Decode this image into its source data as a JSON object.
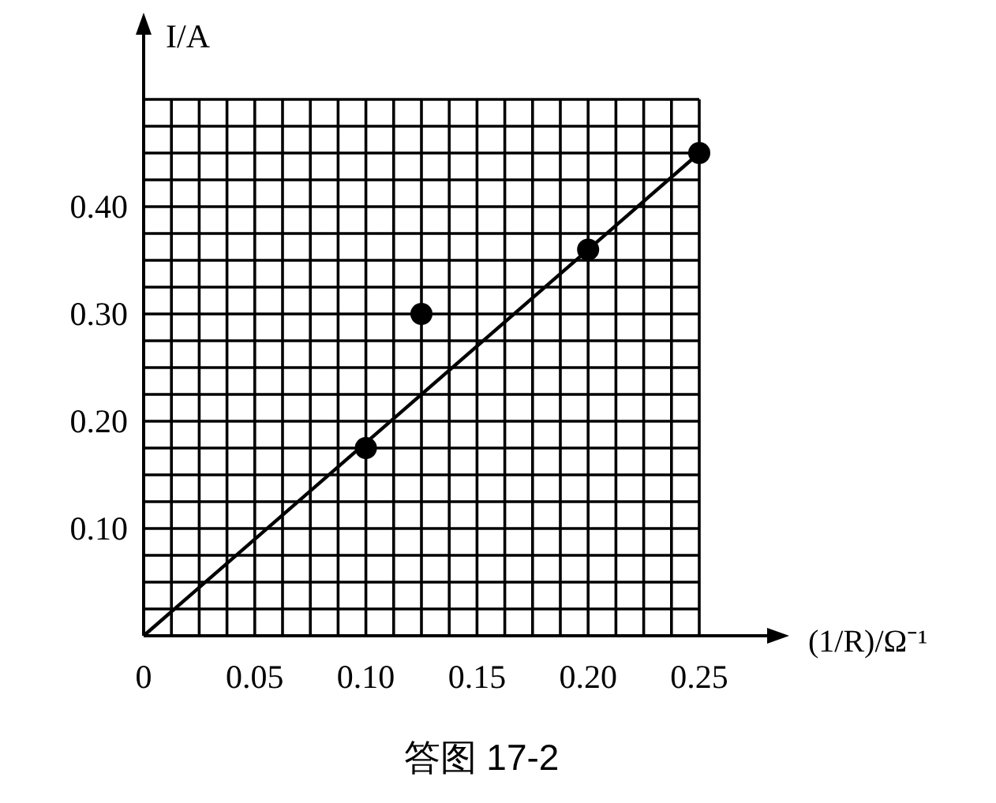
{
  "chart_data": {
    "type": "scatter",
    "xlabel": "(1/R)/Ω⁻¹",
    "ylabel": "I/A",
    "annotations": [
      "答图 17-2"
    ],
    "xlim": [
      0,
      0.25
    ],
    "ylim": [
      0,
      0.5
    ],
    "xticks": [
      {
        "value": 0,
        "label": "0"
      },
      {
        "value": 0.0125,
        "label": null
      },
      {
        "value": 0.025,
        "label": null
      },
      {
        "value": 0.0375,
        "label": null
      },
      0.05,
      {
        "value": 0.0625,
        "label": null
      },
      {
        "value": 0.075,
        "label": null
      },
      {
        "value": 0.0875,
        "label": null
      },
      {
        "value": 0.1,
        "label": "0.10"
      },
      {
        "value": 0.1125,
        "label": null
      },
      {
        "value": 0.125,
        "label": null
      },
      {
        "value": 0.1375,
        "label": null
      },
      0.15,
      {
        "value": 0.1625,
        "label": null
      },
      {
        "value": 0.175,
        "label": null
      },
      {
        "value": 0.1875,
        "label": null
      },
      {
        "value": 0.2,
        "label": "0.20"
      },
      {
        "value": 0.2125,
        "label": null
      },
      {
        "value": 0.225,
        "label": null
      },
      {
        "value": 0.2375,
        "label": null
      },
      0.25
    ],
    "yticks": [
      {
        "value": 0,
        "label": null
      },
      {
        "value": 0.025,
        "label": null
      },
      {
        "value": 0.05,
        "label": null
      },
      {
        "value": 0.075,
        "label": null
      },
      {
        "value": 0.1,
        "label": "0.10"
      },
      {
        "value": 0.125,
        "label": null
      },
      {
        "value": 0.15,
        "label": null
      },
      {
        "value": 0.175,
        "label": null
      },
      {
        "value": 0.2,
        "label": "0.20"
      },
      {
        "value": 0.225,
        "label": null
      },
      {
        "value": 0.25,
        "label": null
      },
      {
        "value": 0.275,
        "label": null
      },
      {
        "value": 0.3,
        "label": "0.30"
      },
      {
        "value": 0.325,
        "label": null
      },
      {
        "value": 0.35,
        "label": null
      },
      {
        "value": 0.375,
        "label": null
      },
      {
        "value": 0.4,
        "label": "0.40"
      },
      {
        "value": 0.425,
        "label": null
      },
      {
        "value": 0.45,
        "label": null
      },
      {
        "value": 0.475,
        "label": null
      },
      {
        "value": 0.5,
        "label": null
      }
    ],
    "grid": true,
    "series": [
      {
        "type": "scatter",
        "marker": "circle",
        "color": "#000000",
        "x": [
          0.1,
          0.125,
          0.2,
          0.25
        ],
        "values": [
          0.175,
          0.3,
          0.36,
          0.45
        ]
      },
      {
        "type": "line",
        "color": "#000000",
        "x": [
          0,
          0.25
        ],
        "values": [
          0,
          0.45
        ],
        "line_style": "solid",
        "marker": "none"
      }
    ]
  }
}
